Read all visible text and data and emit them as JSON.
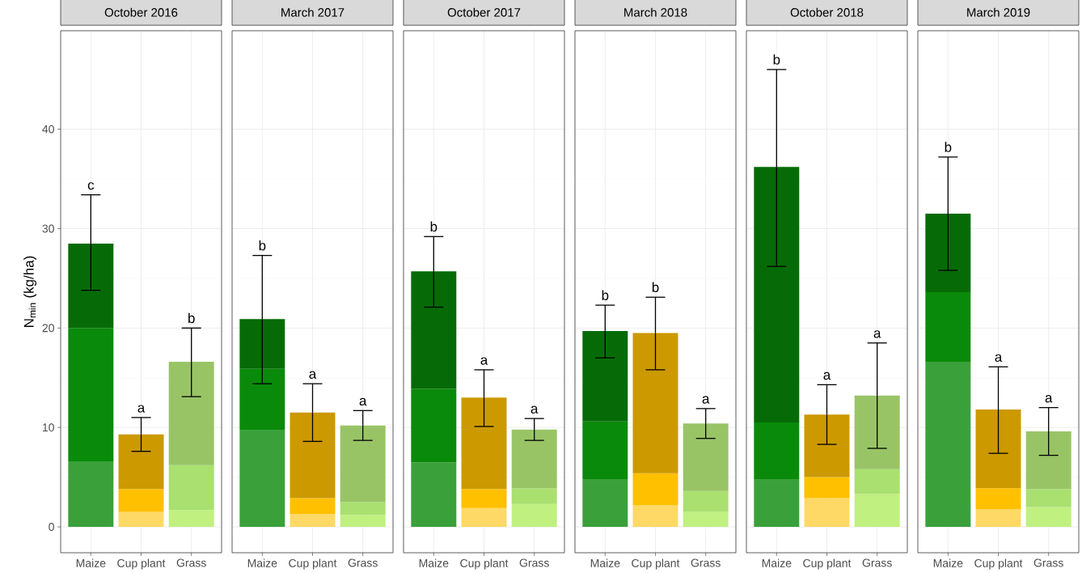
{
  "chart_data": [
    {
      "type": "bar",
      "title": "October 2016",
      "ylabel": "N$_{min}$ (kg/ha)",
      "categories": [
        "Maize",
        "Cup plant",
        "Grass"
      ],
      "stacked": true,
      "ylim": [
        -2.6,
        49.9
      ],
      "yticks": [
        0,
        10,
        20,
        30,
        40
      ],
      "grid": true,
      "series": [
        {
          "colors": [
            "#3aa13a",
            "#ffd966",
            "#c0f080"
          ],
          "values": [
            6.6,
            1.5,
            1.7
          ]
        },
        {
          "colors": [
            "#0a8a0a",
            "#ffc000",
            "#a9e070"
          ],
          "values": [
            13.4,
            2.3,
            4.5
          ]
        },
        {
          "colors": [
            "#066b06",
            "#cc9900",
            "#99c466"
          ],
          "values": [
            8.5,
            5.5,
            10.4
          ],
          "errors": [
            [
              23.8,
              33.4
            ],
            [
              7.6,
              11.0
            ],
            [
              13.1,
              20.0
            ]
          ]
        }
      ],
      "annotations": [
        "c",
        "a",
        "b"
      ]
    },
    {
      "type": "bar",
      "title": "March 2017",
      "categories": [
        "Maize",
        "Cup plant",
        "Grass"
      ],
      "stacked": true,
      "ylim": [
        -2.6,
        49.9
      ],
      "yticks": [
        0,
        10,
        20,
        30,
        40
      ],
      "grid": true,
      "tick_labels": "x",
      "series": [
        {
          "colors": [
            "#3aa13a",
            "#ffd966",
            "#c0f080"
          ],
          "values": [
            9.7,
            1.3,
            1.2
          ]
        },
        {
          "colors": [
            "#0a8a0a",
            "#ffc000",
            "#a9e070"
          ],
          "values": [
            6.2,
            1.6,
            1.3
          ]
        },
        {
          "colors": [
            "#066b06",
            "#cc9900",
            "#99c466"
          ],
          "values": [
            5.0,
            8.6,
            7.7
          ],
          "errors": [
            [
              14.4,
              27.3
            ],
            [
              8.6,
              14.4
            ],
            [
              8.7,
              11.7
            ]
          ]
        }
      ],
      "annotations": [
        "b",
        "a",
        "a"
      ]
    },
    {
      "type": "bar",
      "title": "October 2017",
      "categories": [
        "Maize",
        "Cup plant",
        "Grass"
      ],
      "stacked": true,
      "ylim": [
        -2.6,
        49.9
      ],
      "yticks": [
        0,
        10,
        20,
        30,
        40
      ],
      "grid": true,
      "tick_labels": "x",
      "series": [
        {
          "colors": [
            "#3aa13a",
            "#ffd966",
            "#c0f080"
          ],
          "values": [
            6.5,
            1.9,
            2.3
          ]
        },
        {
          "colors": [
            "#0a8a0a",
            "#ffc000",
            "#a9e070"
          ],
          "values": [
            7.4,
            1.9,
            1.6
          ]
        },
        {
          "colors": [
            "#066b06",
            "#cc9900",
            "#99c466"
          ],
          "values": [
            11.8,
            9.2,
            5.9
          ],
          "errors": [
            [
              22.1,
              29.2
            ],
            [
              10.1,
              15.8
            ],
            [
              8.7,
              10.9
            ]
          ]
        }
      ],
      "annotations": [
        "b",
        "a",
        "a"
      ]
    },
    {
      "type": "bar",
      "title": "March 2018",
      "categories": [
        "Maize",
        "Cup plant",
        "Grass"
      ],
      "stacked": true,
      "ylim": [
        -2.6,
        49.9
      ],
      "yticks": [
        0,
        10,
        20,
        30,
        40
      ],
      "grid": true,
      "tick_labels": "x",
      "series": [
        {
          "colors": [
            "#3aa13a",
            "#ffd966",
            "#c0f080"
          ],
          "values": [
            4.8,
            2.2,
            1.5
          ]
        },
        {
          "colors": [
            "#0a8a0a",
            "#ffc000",
            "#a9e070"
          ],
          "values": [
            5.8,
            3.2,
            2.1
          ]
        },
        {
          "colors": [
            "#066b06",
            "#cc9900",
            "#99c466"
          ],
          "values": [
            9.1,
            14.1,
            6.8
          ],
          "errors": [
            [
              17.0,
              22.3
            ],
            [
              15.8,
              23.1
            ],
            [
              8.9,
              11.9
            ]
          ]
        }
      ],
      "annotations": [
        "b",
        "b",
        "a"
      ]
    },
    {
      "type": "bar",
      "title": "October 2018",
      "categories": [
        "Maize",
        "Cup plant",
        "Grass"
      ],
      "stacked": true,
      "ylim": [
        -2.6,
        49.9
      ],
      "yticks": [
        0,
        10,
        20,
        30,
        40
      ],
      "grid": true,
      "tick_labels": "x",
      "series": [
        {
          "colors": [
            "#3aa13a",
            "#ffd966",
            "#c0f080"
          ],
          "values": [
            4.8,
            2.9,
            3.3
          ]
        },
        {
          "colors": [
            "#0a8a0a",
            "#ffc000",
            "#a9e070"
          ],
          "values": [
            5.7,
            2.1,
            2.5
          ]
        },
        {
          "colors": [
            "#066b06",
            "#cc9900",
            "#99c466"
          ],
          "values": [
            25.7,
            6.3,
            7.4
          ],
          "errors": [
            [
              26.2,
              46.0
            ],
            [
              8.3,
              14.3
            ],
            [
              7.9,
              18.5
            ]
          ]
        }
      ],
      "annotations": [
        "b",
        "a",
        "a"
      ]
    },
    {
      "type": "bar",
      "title": "March 2019",
      "categories": [
        "Maize",
        "Cup plant",
        "Grass"
      ],
      "stacked": true,
      "ylim": [
        -2.6,
        49.9
      ],
      "yticks": [
        0,
        10,
        20,
        30,
        40
      ],
      "grid": true,
      "tick_labels": "x",
      "series": [
        {
          "colors": [
            "#3aa13a",
            "#ffd966",
            "#c0f080"
          ],
          "values": [
            16.6,
            1.8,
            2.0
          ]
        },
        {
          "colors": [
            "#0a8a0a",
            "#ffc000",
            "#a9e070"
          ],
          "values": [
            7.0,
            2.1,
            1.8
          ]
        },
        {
          "colors": [
            "#066b06",
            "#cc9900",
            "#99c466"
          ],
          "values": [
            7.9,
            7.9,
            5.8
          ],
          "errors": [
            [
              25.8,
              37.2
            ],
            [
              7.4,
              16.1
            ],
            [
              7.2,
              12.0
            ]
          ]
        }
      ],
      "annotations": [
        "b",
        "a",
        "a"
      ]
    }
  ]
}
